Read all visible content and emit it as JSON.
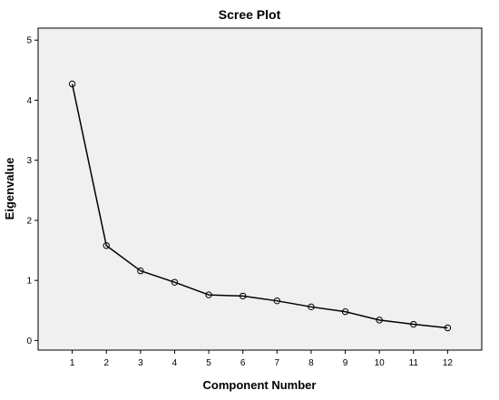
{
  "chart_data": {
    "type": "line",
    "title": "Scree Plot",
    "xlabel": "Component Number",
    "ylabel": "Eigenvalue",
    "x": [
      1,
      2,
      3,
      4,
      5,
      6,
      7,
      8,
      9,
      10,
      11,
      12
    ],
    "series": [
      {
        "name": "",
        "values": [
          4.27,
          1.58,
          1.16,
          0.97,
          0.76,
          0.74,
          0.66,
          0.56,
          0.48,
          0.34,
          0.27,
          0.21
        ]
      }
    ],
    "xticks": [
      "1",
      "2",
      "3",
      "4",
      "5",
      "6",
      "7",
      "8",
      "9",
      "10",
      "11",
      "12"
    ],
    "yticks": [
      "0",
      "1",
      "2",
      "3",
      "4",
      "5"
    ],
    "xlim": [
      0,
      13
    ],
    "ylim": [
      -0.16,
      5.2
    ],
    "grid": false,
    "legend": "none",
    "marker": "open-circle",
    "colors": {
      "plot_background": "#f0f0f0",
      "line": "#000000",
      "frame": "#000000"
    }
  }
}
